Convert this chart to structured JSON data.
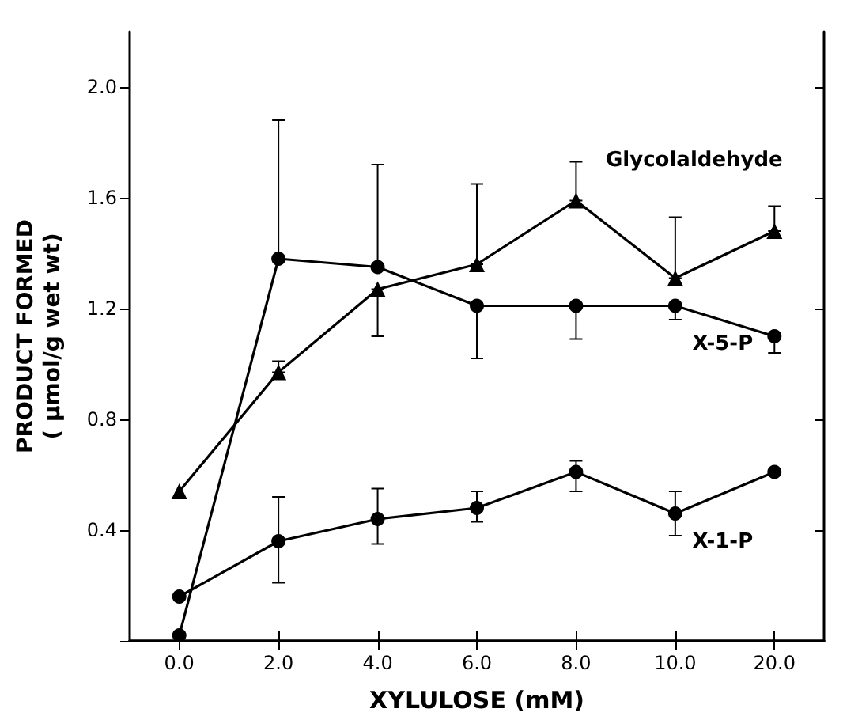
{
  "chart_data": {
    "type": "line",
    "xlabel": "XYLULOSE (mM)",
    "ylabel": "PRODUCT FORMED\n( μmol/g wet wt)",
    "categories": [
      "0.0",
      "2.0",
      "4.0",
      "6.0",
      "8.0",
      "10.0",
      "20.0"
    ],
    "ylim": [
      0,
      2.2
    ],
    "yticks": [
      {
        "value": 0,
        "label": null
      },
      0.4,
      0.8,
      1.2,
      1.6,
      {
        "value": 2.0,
        "label": "2.0"
      }
    ],
    "grid": false,
    "legend": false,
    "line_style": "solid",
    "series": [
      {
        "name": "X-5-P",
        "color": "#000000",
        "marker": "circle",
        "values": [
          0.02,
          1.38,
          1.35,
          1.21,
          1.21,
          1.21,
          1.1
        ],
        "errors": [
          null,
          [
            1.38,
            1.88
          ],
          [
            1.35,
            1.72
          ],
          [
            1.02,
            1.21
          ],
          [
            1.09,
            1.21
          ],
          [
            1.16,
            1.21
          ],
          [
            1.04,
            1.1
          ]
        ]
      },
      {
        "name": "Glycolaldehyde",
        "color": "#000000",
        "marker": "triangle",
        "values": [
          0.54,
          0.97,
          1.27,
          1.36,
          1.59,
          1.31,
          1.48
        ],
        "errors": [
          null,
          [
            0.97,
            1.01
          ],
          [
            1.1,
            1.27
          ],
          [
            1.36,
            1.65
          ],
          [
            1.59,
            1.73
          ],
          [
            1.31,
            1.53
          ],
          [
            1.48,
            1.57
          ]
        ]
      },
      {
        "name": "X-1-P",
        "color": "#000000",
        "marker": "circle",
        "values": [
          0.16,
          0.36,
          0.44,
          0.48,
          0.61,
          0.46,
          0.61
        ],
        "errors": [
          null,
          [
            0.21,
            0.52
          ],
          [
            0.35,
            0.55
          ],
          [
            0.43,
            0.54
          ],
          [
            0.54,
            0.65
          ],
          [
            0.38,
            0.54
          ],
          null
        ]
      }
    ]
  }
}
